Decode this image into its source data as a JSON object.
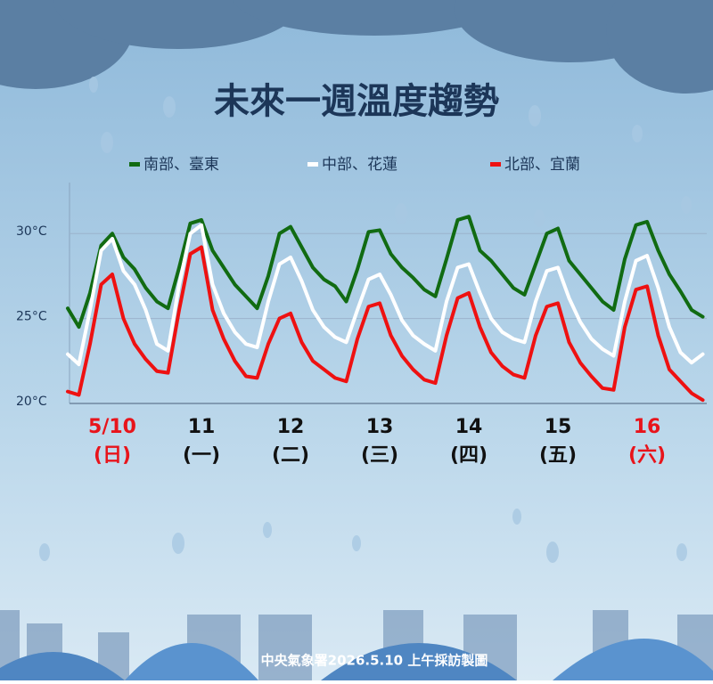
{
  "chart_data": {
    "type": "line",
    "title": "未來一週溫度趨勢",
    "footer": "中央氣象署2026.5.10 上午採訪製圖",
    "x": [
      0,
      3,
      6,
      9,
      12,
      15,
      18,
      21,
      24,
      27,
      30,
      33,
      36,
      39,
      42,
      45,
      48,
      51,
      54,
      57,
      60,
      63,
      66,
      69,
      72,
      75,
      78,
      81,
      84,
      87,
      90,
      93,
      96,
      99,
      102,
      105,
      108,
      111,
      114,
      117,
      120,
      123,
      126,
      129,
      132,
      135,
      138,
      141,
      144,
      147,
      150,
      153,
      156,
      159,
      162,
      165,
      168,
      171
    ],
    "xlim": [
      0,
      172
    ],
    "xticks": [
      {
        "value": 12,
        "label": "5/10"
      },
      {
        "value": 36,
        "label": "11"
      },
      {
        "value": 60,
        "label": "12"
      },
      {
        "value": 84,
        "label": "13"
      },
      {
        "value": 108,
        "label": "14"
      },
      {
        "value": 132,
        "label": "15"
      },
      {
        "value": 156,
        "label": "16"
      }
    ],
    "xtick_sublabels": [
      "(日)",
      "(一)",
      "(二)",
      "(三)",
      "(四)",
      "(五)",
      "(六)"
    ],
    "xtick_colors": [
      "#e8141b",
      "#111111",
      "#111111",
      "#111111",
      "#111111",
      "#111111",
      "#e8141b"
    ],
    "ylim": [
      20,
      33
    ],
    "yticks": [
      {
        "value": 20,
        "label": "20°C"
      },
      {
        "value": 25,
        "label": "25°C"
      },
      {
        "value": 30,
        "label": "30°C"
      }
    ],
    "grid": true,
    "series": [
      {
        "name": "南部、臺東",
        "color": "#116b12",
        "values": [
          25.6,
          24.5,
          26.5,
          29.3,
          30.0,
          28.6,
          27.9,
          26.8,
          26.0,
          25.6,
          28.0,
          30.6,
          30.8,
          29.0,
          28.0,
          27.0,
          26.3,
          25.6,
          27.5,
          30.0,
          30.4,
          29.2,
          28.0,
          27.3,
          26.9,
          26.0,
          27.9,
          30.1,
          30.2,
          28.8,
          28.0,
          27.4,
          26.7,
          26.3,
          28.5,
          30.8,
          31.0,
          29.0,
          28.4,
          27.6,
          26.8,
          26.4,
          28.2,
          30.0,
          30.3,
          28.4,
          27.6,
          26.8,
          26.0,
          25.5,
          28.5,
          30.5,
          30.7,
          29.0,
          27.6,
          26.6,
          25.5,
          25.1
        ]
      },
      {
        "name": "中部、花蓮",
        "color": "#ffffff",
        "values": [
          22.9,
          22.3,
          25.5,
          29.0,
          29.7,
          27.8,
          27.0,
          25.5,
          23.5,
          23.1,
          27.0,
          30.0,
          30.5,
          27.0,
          25.3,
          24.2,
          23.5,
          23.3,
          26.0,
          28.2,
          28.6,
          27.2,
          25.5,
          24.5,
          23.9,
          23.6,
          25.5,
          27.3,
          27.6,
          26.4,
          24.9,
          24.0,
          23.5,
          23.1,
          26.0,
          28.0,
          28.2,
          26.5,
          25.0,
          24.2,
          23.8,
          23.6,
          26.0,
          27.8,
          28.0,
          26.2,
          24.8,
          23.8,
          23.2,
          22.8,
          26.0,
          28.4,
          28.7,
          26.8,
          24.5,
          23.0,
          22.4,
          22.9
        ]
      },
      {
        "name": "北部、宜蘭",
        "color": "#ee1111",
        "values": [
          20.7,
          20.5,
          23.5,
          27.0,
          27.6,
          25.0,
          23.5,
          22.6,
          21.9,
          21.8,
          25.5,
          28.8,
          29.2,
          25.5,
          23.8,
          22.5,
          21.6,
          21.5,
          23.5,
          25.0,
          25.3,
          23.6,
          22.5,
          22.0,
          21.5,
          21.3,
          23.8,
          25.7,
          25.9,
          24.0,
          22.8,
          22.0,
          21.4,
          21.2,
          24.0,
          26.2,
          26.5,
          24.5,
          23.0,
          22.2,
          21.7,
          21.5,
          24.0,
          25.7,
          25.9,
          23.6,
          22.4,
          21.6,
          20.9,
          20.8,
          24.5,
          26.7,
          26.9,
          24.0,
          22.0,
          21.3,
          20.6,
          20.2
        ]
      }
    ]
  }
}
